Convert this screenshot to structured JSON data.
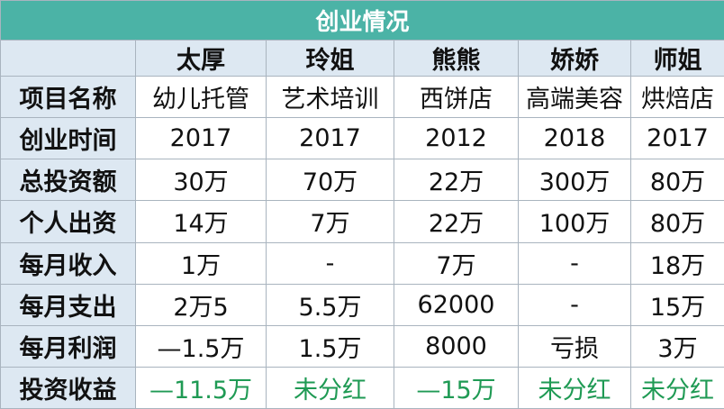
{
  "title": "创业情况",
  "table": {
    "columns": [
      "太厚",
      "玲姐",
      "熊熊",
      "娇娇",
      "师姐"
    ],
    "rows": [
      [
        "项目名称",
        "幼儿托管",
        "艺术培训",
        "西饼店",
        "高端美容",
        "烘焙店"
      ],
      [
        "创业时间",
        "2017",
        "2017",
        "2012",
        "2018",
        "2017"
      ],
      [
        "总投资额",
        "30万",
        "70万",
        "22万",
        "300万",
        "80万"
      ],
      [
        "个人出资",
        "14万",
        "7万",
        "22万",
        "100万",
        "80万"
      ],
      [
        "每月收入",
        "1万",
        "-",
        "7万",
        "-",
        "18万"
      ],
      [
        "每月支出",
        "2万5",
        "5.5万",
        "62000",
        "-",
        "15万"
      ],
      [
        "每月利润",
        "—1.5万",
        "1.5万",
        "8000",
        "亏损",
        "3万"
      ],
      [
        "投资收益",
        "—11.5万",
        "未分红",
        "—15万",
        "未分红",
        "未分红"
      ]
    ]
  }
}
